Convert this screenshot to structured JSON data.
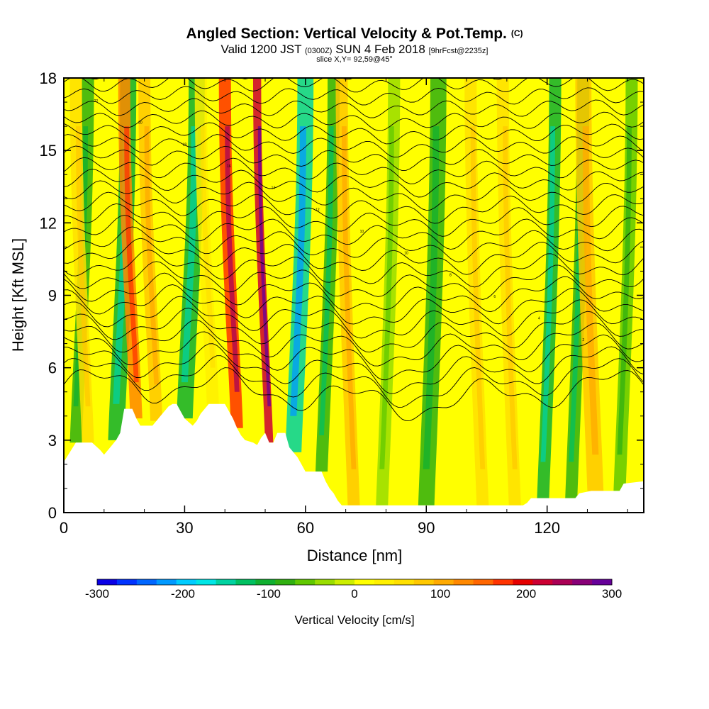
{
  "chart_data": {
    "type": "heatmap",
    "title": "Angled Section: Vertical Velocity & Pot.Temp.",
    "title_units": "(C)",
    "subtitle_parts": [
      "Valid 1200 JST ",
      "(0300Z)",
      " SUN 4 Feb 2018 ",
      "[9hrFcst@2235z]"
    ],
    "slice_label": "slice X,Y= 92,59@45°",
    "xlabel": "Distance [nm]",
    "ylabel": "Height [Kft MSL]",
    "xlim": [
      0,
      144
    ],
    "ylim": [
      0,
      18
    ],
    "x_ticks": [
      0,
      30,
      60,
      90,
      120
    ],
    "y_ticks": [
      0,
      3,
      6,
      9,
      12,
      15,
      18
    ],
    "grid": false,
    "colorbar": {
      "label": "Vertical Velocity [cm/s]",
      "range": [
        -300,
        300
      ],
      "tick_labels": [
        -300,
        -200,
        -100,
        0,
        100,
        200,
        300
      ],
      "colors": [
        "#0a00e6",
        "#0033ff",
        "#0066ff",
        "#0099ff",
        "#00ccff",
        "#00e6e6",
        "#00d2a0",
        "#00c060",
        "#10b030",
        "#30b010",
        "#60c800",
        "#99dd00",
        "#ccee00",
        "#ffff00",
        "#fff000",
        "#ffe000",
        "#ffc800",
        "#ffaa00",
        "#ff8800",
        "#ff6600",
        "#ff3300",
        "#e60000",
        "#cc0033",
        "#aa0055",
        "#880077",
        "#660099"
      ]
    },
    "vertical_velocity_bands": [
      {
        "x": 3,
        "width": 3,
        "value": -70
      },
      {
        "x": 6,
        "width": 3,
        "value": 60
      },
      {
        "x": 13,
        "width": 4,
        "value": -110
      },
      {
        "x": 18,
        "width": 3,
        "value": 130
      },
      {
        "x": 23,
        "width": 3,
        "value": 70
      },
      {
        "x": 30,
        "width": 4,
        "value": -100
      },
      {
        "x": 37,
        "width": 3,
        "value": 40
      },
      {
        "x": 43,
        "width": 3,
        "value": 180
      },
      {
        "x": 51,
        "width": 2,
        "value": 220
      },
      {
        "x": 57,
        "width": 4,
        "value": -150
      },
      {
        "x": 64,
        "width": 3,
        "value": -90
      },
      {
        "x": 72,
        "width": 3,
        "value": 80
      },
      {
        "x": 79,
        "width": 3,
        "value": -40
      },
      {
        "x": 90,
        "width": 4,
        "value": -80
      },
      {
        "x": 104,
        "width": 3,
        "value": 60
      },
      {
        "x": 112,
        "width": 3,
        "value": 50
      },
      {
        "x": 119,
        "width": 3,
        "value": -100
      },
      {
        "x": 126,
        "width": 3,
        "value": -90
      },
      {
        "x": 132,
        "width": 4,
        "value": 70
      },
      {
        "x": 138,
        "width": 3,
        "value": -50
      }
    ],
    "terrain_height": [
      [
        0,
        2.1
      ],
      [
        3,
        2.9
      ],
      [
        7,
        2.9
      ],
      [
        9,
        2.6
      ],
      [
        10,
        2.4
      ],
      [
        11,
        2.6
      ],
      [
        12,
        2.8
      ],
      [
        13,
        3.0
      ],
      [
        14,
        3.3
      ],
      [
        15,
        4.3
      ],
      [
        17,
        4.3
      ],
      [
        18,
        3.9
      ],
      [
        19,
        3.6
      ],
      [
        22,
        3.6
      ],
      [
        23,
        3.8
      ],
      [
        24,
        4.0
      ],
      [
        25,
        4.2
      ],
      [
        26,
        4.4
      ],
      [
        27,
        4.5
      ],
      [
        28,
        4.5
      ],
      [
        29,
        4.2
      ],
      [
        30,
        3.9
      ],
      [
        32,
        3.6
      ],
      [
        33,
        3.8
      ],
      [
        34,
        4.1
      ],
      [
        36,
        4.5
      ],
      [
        40,
        4.5
      ],
      [
        41,
        4.2
      ],
      [
        42,
        3.9
      ],
      [
        43,
        3.5
      ],
      [
        44,
        3.2
      ],
      [
        45,
        3.0
      ],
      [
        47,
        2.9
      ],
      [
        48,
        2.8
      ],
      [
        49,
        3.1
      ],
      [
        50,
        3.3
      ],
      [
        51,
        2.9
      ],
      [
        52,
        2.9
      ],
      [
        53,
        3.3
      ],
      [
        55,
        3.3
      ],
      [
        56,
        2.7
      ],
      [
        58,
        2.3
      ],
      [
        59,
        2.0
      ],
      [
        60,
        1.7
      ],
      [
        62,
        1.7
      ],
      [
        64,
        1.7
      ],
      [
        65,
        1.3
      ],
      [
        66,
        1.0
      ],
      [
        67,
        0.8
      ],
      [
        68,
        0.5
      ],
      [
        69,
        0.3
      ],
      [
        91,
        0.3
      ],
      [
        97,
        0.3
      ],
      [
        114,
        0.3
      ],
      [
        115,
        0.4
      ],
      [
        116,
        0.6
      ],
      [
        127,
        0.6
      ],
      [
        128,
        0.8
      ],
      [
        131,
        0.9
      ],
      [
        138,
        0.9
      ],
      [
        139,
        1.2
      ],
      [
        144,
        1.3
      ]
    ],
    "contour_count": 27,
    "contour_labels": [
      "22",
      "20",
      "18",
      "16",
      "14",
      "12",
      "10",
      "10",
      "8",
      "6",
      "4",
      "2"
    ]
  }
}
